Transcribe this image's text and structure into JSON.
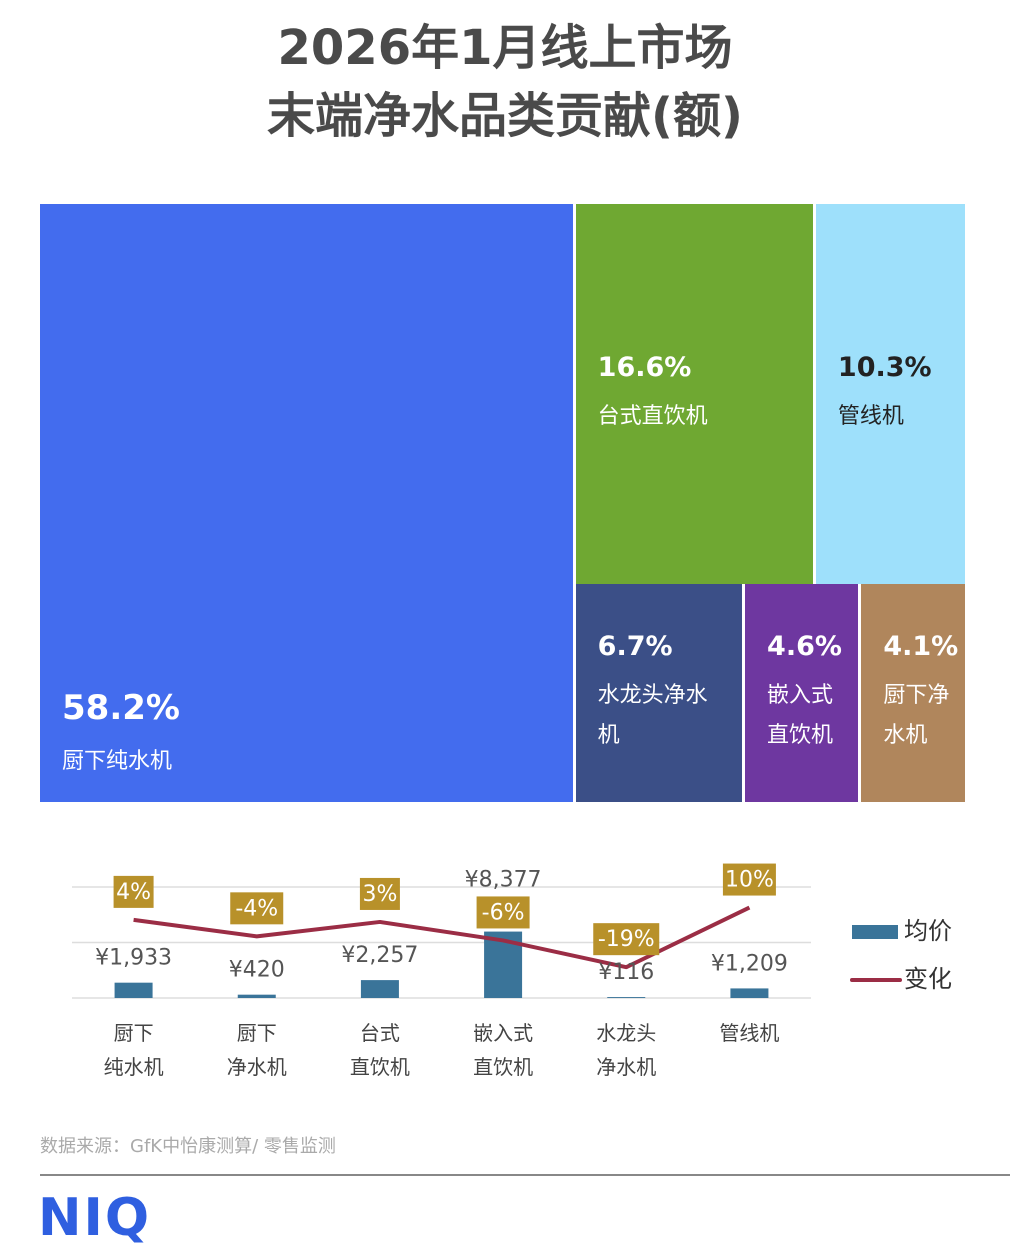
{
  "chart_data": [
    {
      "type": "treemap",
      "title": "2026年1月线上市场\n末端净水品类贡献(额)",
      "categories": [
        "厨下纯水机",
        "台式直饮机",
        "管线机",
        "水龙头净水机",
        "嵌入式直饮机",
        "厨下净水机"
      ],
      "values": [
        58.2,
        16.6,
        10.3,
        6.7,
        4.6,
        4.1
      ],
      "value_labels": [
        "58.2%",
        "16.6%",
        "10.3%",
        "6.7%",
        "4.6%",
        "4.1%"
      ],
      "colors": [
        "#436cee",
        "#6fa832",
        "#9ee0fb",
        "#3b4f87",
        "#6e37a0",
        "#b0865c"
      ]
    },
    {
      "type": "bar-line",
      "categories": [
        "厨下\n纯水机",
        "厨下\n净水机",
        "台式\n直饮机",
        "嵌入式\n直饮机",
        "水龙头\n净水机",
        "管线机"
      ],
      "series": [
        {
          "name": "均价",
          "type": "bar",
          "color": "#3a7499",
          "values": [
            1933,
            420,
            2257,
            8377,
            116,
            1209
          ],
          "value_labels": [
            "¥1,933",
            "¥420",
            "¥2,257",
            "¥8,377",
            "¥116",
            "¥1,209"
          ]
        },
        {
          "name": "变化",
          "type": "line",
          "axis": "y2",
          "color": "#9b2d45",
          "values": [
            4,
            -4,
            3,
            -6,
            -19,
            10
          ],
          "value_labels": [
            "4%",
            "-4%",
            "3%",
            "-6%",
            "-19%",
            "10%"
          ]
        }
      ],
      "ylim": [
        0,
        14000
      ],
      "yticks": [
        0,
        7000,
        14000
      ],
      "y2lim": [
        -34,
        20
      ],
      "grid": true,
      "legend": "right"
    }
  ],
  "footer": {
    "source": "数据来源：GfK中怡康测算/ 零售监测",
    "logo": "NIQ"
  }
}
